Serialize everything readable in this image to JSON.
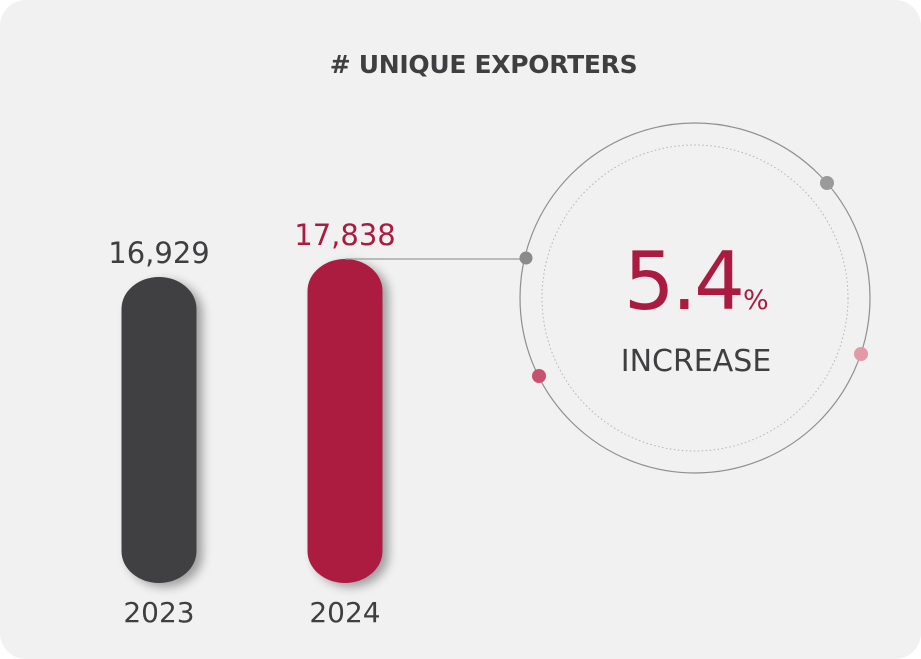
{
  "chart_data": {
    "type": "bar",
    "title": "# UNIQUE EXPORTERS",
    "categories": [
      "2023",
      "2024"
    ],
    "values": [
      16929,
      17838
    ],
    "value_labels": [
      "16,929",
      "17,838"
    ],
    "colors": [
      "#414143",
      "#ab1b3f"
    ]
  },
  "callout": {
    "value": "5.4",
    "unit": "%",
    "label": "INCREASE"
  },
  "colors": {
    "dark": "#414143",
    "accent": "#ab1b3f",
    "pink": "#c9506f",
    "light_pink": "#e38f9e",
    "gray_dot": "#8a8a8a",
    "background": "#f1f1f1"
  }
}
